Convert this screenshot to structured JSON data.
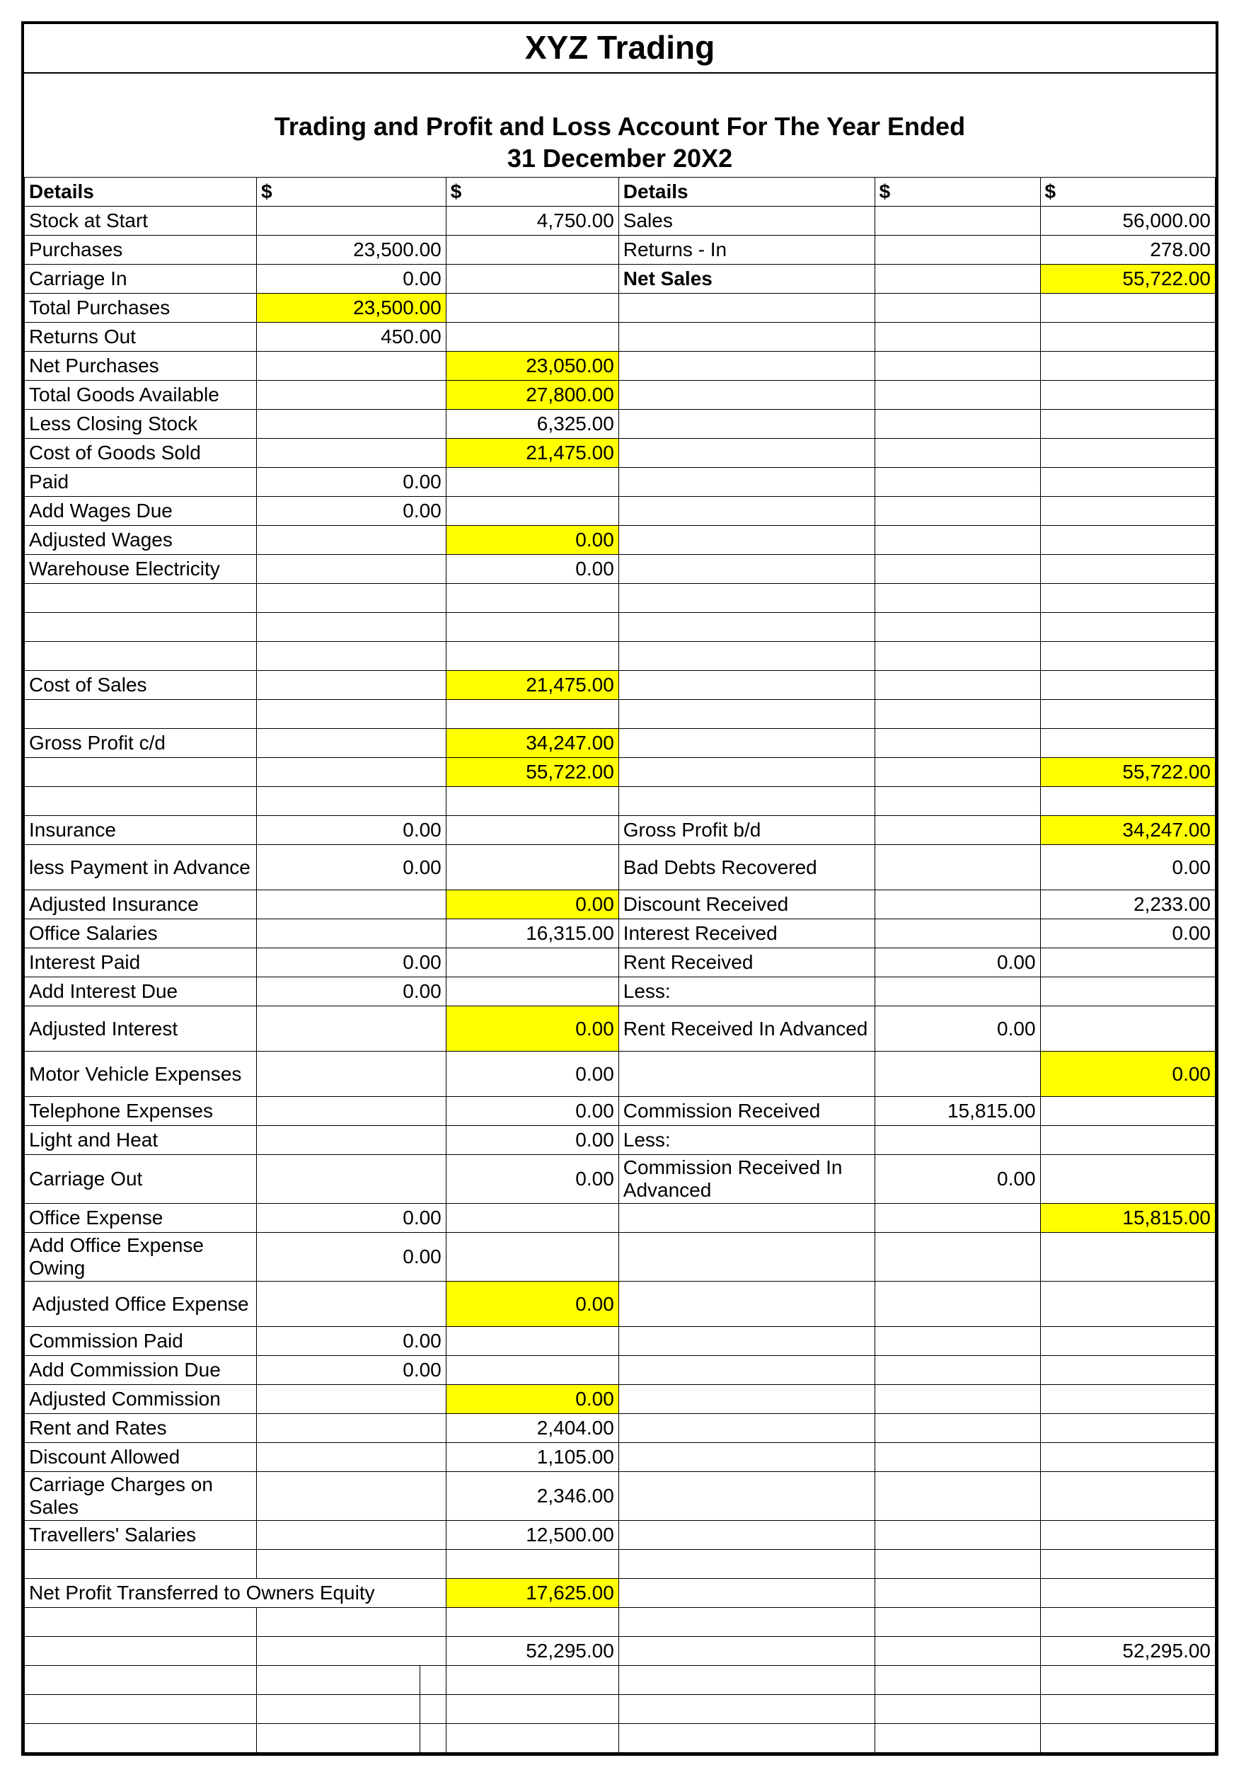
{
  "title": "XYZ Trading",
  "subtitle1": "Trading and Profit and Loss Account For The Year Ended",
  "subtitle2": "31 December 20X2",
  "headers": {
    "details": "Details",
    "dollar": "$"
  },
  "colors": {
    "highlight": "#ffff00",
    "border": "#000000",
    "bg": "#ffffff"
  },
  "font": {
    "title_size": 46,
    "subtitle_size": 36,
    "cell_size": 28
  },
  "rows": [
    {
      "L_lbl": "Stock at Start",
      "L_c1": "",
      "L_c2": "4,750.00",
      "R_lbl": "Sales",
      "R_c1": "",
      "R_c2": "56,000.00"
    },
    {
      "L_lbl": "Purchases",
      "L_c1": "23,500.00",
      "L_c2": "",
      "R_lbl": "Returns - In",
      "R_c1": "",
      "R_c2": "278.00"
    },
    {
      "L_lbl": "Carriage In",
      "L_c1": "0.00",
      "L_c2": "",
      "R_lbl": "Net Sales",
      "R_bold": true,
      "R_center": true,
      "R_c1": "",
      "R_c2": "55,722.00",
      "R_c2_hl": true
    },
    {
      "L_lbl": "Total Purchases",
      "L_indent": 1,
      "L_c1": "23,500.00",
      "L_c1_hl": true,
      "L_c2": "",
      "R_lbl": "",
      "R_c1": "",
      "R_c2": ""
    },
    {
      "L_lbl": "Returns Out",
      "L_c1": "450.00",
      "L_c2": "",
      "R_lbl": "",
      "R_c1": "",
      "R_c2": ""
    },
    {
      "L_lbl": "Net Purchases",
      "L_indent": 1,
      "L_c1": "",
      "L_c2": "23,050.00",
      "L_c2_hl": true,
      "R_lbl": "",
      "R_c1": "",
      "R_c2": ""
    },
    {
      "L_lbl": "Total Goods Available",
      "L_indent": 0,
      "L_c1": "",
      "L_c2": "27,800.00",
      "L_c2_hl": true,
      "R_lbl": "",
      "R_c1": "",
      "R_c2": ""
    },
    {
      "L_lbl": "Less Closing Stock",
      "L_c1": "",
      "L_c2": "6,325.00",
      "R_lbl": "",
      "R_c1": "",
      "R_c2": ""
    },
    {
      "L_lbl": "Cost of Goods Sold",
      "L_indent": 1,
      "L_c1": "",
      "L_c2": "21,475.00",
      "L_c2_hl": true,
      "R_lbl": "",
      "R_c1": "",
      "R_c2": ""
    },
    {
      "L_lbl": "Paid",
      "L_c1": "0.00",
      "L_c2": "",
      "R_lbl": "",
      "R_c1": "",
      "R_c2": ""
    },
    {
      "L_lbl": "Add Wages Due",
      "L_c1": "0.00",
      "L_c2": "",
      "R_lbl": "",
      "R_c1": "",
      "R_c2": ""
    },
    {
      "L_lbl": "Adjusted Wages",
      "L_indent": 1,
      "L_c1": "",
      "L_c2": "0.00",
      "L_c2_hl": true,
      "R_lbl": "",
      "R_c1": "",
      "R_c2": ""
    },
    {
      "L_lbl": "Warehouse Electricity",
      "L_c1": "",
      "L_c2": "0.00",
      "R_lbl": "",
      "R_c1": "",
      "R_c2": ""
    },
    {
      "blank": true
    },
    {
      "blank": true
    },
    {
      "blank": true
    },
    {
      "L_lbl": "Cost of Sales",
      "L_indent": 1,
      "L_c1": "",
      "L_c2": "21,475.00",
      "L_c2_hl": true,
      "R_lbl": "",
      "R_c1": "",
      "R_c2": ""
    },
    {
      "blank": true
    },
    {
      "L_lbl": "Gross Profit c/d",
      "L_c1": "",
      "L_c2": "34,247.00",
      "L_c2_hl": true,
      "R_lbl": "",
      "R_c1": "",
      "R_c2": ""
    },
    {
      "L_lbl": "",
      "L_c1": "",
      "L_c2": "55,722.00",
      "L_c2_hl": true,
      "R_lbl": "",
      "R_c1": "",
      "R_c2": "55,722.00",
      "R_c2_hl": true
    },
    {
      "blank_short": true
    },
    {
      "L_lbl": "Insurance",
      "L_c1": "0.00",
      "L_c2": "",
      "R_lbl": "Gross Profit b/d",
      "R_c1": "",
      "R_c2": "34,247.00",
      "R_c2_hl": true,
      "short": true
    },
    {
      "L_lbl": "less Payment in Advance",
      "L_c1": "0.00",
      "L_c2": "",
      "R_lbl": "Bad Debts Recovered",
      "R_c1": "",
      "R_c2": "0.00",
      "short": true,
      "tall": true
    },
    {
      "L_lbl": "Adjusted Insurance",
      "L_indent": 1,
      "L_c1": "",
      "L_c2": "0.00",
      "L_c2_hl": true,
      "R_lbl": "Discount Received",
      "R_c1": "",
      "R_c2": "2,233.00",
      "short": true
    },
    {
      "L_lbl": "Office Salaries",
      "L_c1": "",
      "L_c2": "16,315.00",
      "R_lbl": "Interest Received",
      "R_c1": "",
      "R_c2": "0.00",
      "short": true
    },
    {
      "L_lbl": "Interest Paid",
      "L_c1": "0.00",
      "L_c2": "",
      "R_lbl": "Rent Received",
      "R_indent": 1,
      "R_c1": "0.00",
      "R_c2": "",
      "short": true
    },
    {
      "L_lbl": "Add Interest Due",
      "L_c1": "0.00",
      "L_c2": "",
      "R_lbl": "Less:",
      "R_indent": 1,
      "R_c1": "",
      "R_c2": "",
      "short": true
    },
    {
      "L_lbl": "Adjusted Interest",
      "L_indent": 1,
      "L_c1": "",
      "L_c2": "0.00",
      "L_c2_hl": true,
      "R_lbl": "Rent Received In Advanced",
      "R_indent": 0,
      "R_c1": "0.00",
      "R_c2": "",
      "short": true,
      "tall": true
    },
    {
      "L_lbl": "Motor Vehicle Expenses",
      "L_c1": "",
      "L_c2": "0.00",
      "R_lbl": "",
      "R_c1": "",
      "R_c2": "0.00",
      "R_c2_hl": true,
      "short": true,
      "tall": true
    },
    {
      "L_lbl": "Telephone Expenses",
      "L_c1": "",
      "L_c2": "0.00",
      "R_lbl": "Commission Received",
      "R_c1": "15,815.00",
      "R_c2": "",
      "short": true
    },
    {
      "L_lbl": "Light and Heat",
      "L_c1": "",
      "L_c2": "0.00",
      "R_lbl": "Less:",
      "R_c1": "",
      "R_c2": "",
      "short": true
    },
    {
      "L_lbl": "Carriage Out",
      "L_c1": "",
      "L_c2": "0.00",
      "R_lbl": "Commission Received In Advanced",
      "R_center": true,
      "R_c1": "0.00",
      "R_c2": "",
      "short": true,
      "tall": true
    },
    {
      "L_lbl": "Office Expense",
      "L_c1": "0.00",
      "L_c2": "",
      "R_lbl": "",
      "R_c1": "",
      "R_c2": "15,815.00",
      "R_c2_hl": true,
      "short": true
    },
    {
      "L_lbl": "Add Office Expense Owing",
      "L_c1": "0.00",
      "L_c2": "",
      "R_lbl": "",
      "R_c1": "",
      "R_c2": "",
      "short": true,
      "tall": true
    },
    {
      "L_lbl": "Adjusted Office Expense",
      "L_indent": 2,
      "L_indentC": true,
      "L_c1": "",
      "L_c2": "0.00",
      "L_c2_hl": true,
      "R_lbl": "",
      "R_c1": "",
      "R_c2": "",
      "short": true,
      "tall": true
    },
    {
      "L_lbl": "Commission Paid",
      "L_c1": "0.00",
      "L_c2": "",
      "R_lbl": "",
      "R_c1": "",
      "R_c2": "",
      "short": true
    },
    {
      "L_lbl": "Add Commission Due",
      "L_c1": "0.00",
      "L_c2": "",
      "R_lbl": "",
      "R_c1": "",
      "R_c2": "",
      "short": true
    },
    {
      "L_lbl": "Adjusted Commission",
      "L_indent": 0,
      "L_c1": "",
      "L_c2": "0.00",
      "L_c2_hl": true,
      "R_lbl": "",
      "R_c1": "",
      "R_c2": "",
      "short": true
    },
    {
      "L_lbl": "Rent and Rates",
      "L_c1": "",
      "L_c2": "2,404.00",
      "R_lbl": "",
      "R_c1": "",
      "R_c2": "",
      "short": true
    },
    {
      "L_lbl": "Discount Allowed",
      "L_c1": "",
      "L_c2": "1,105.00",
      "R_lbl": "",
      "R_c1": "",
      "R_c2": "",
      "short": true
    },
    {
      "L_lbl": "Carriage Charges on Sales",
      "L_c1": "",
      "L_c2": "2,346.00",
      "R_lbl": "",
      "R_c1": "",
      "R_c2": "",
      "short": true,
      "tall": true
    },
    {
      "L_lbl": "Travellers' Salaries",
      "L_c1": "",
      "L_c2": "12,500.00",
      "R_lbl": "",
      "R_c1": "",
      "R_c2": "",
      "short": true
    },
    {
      "blank_short": true
    },
    {
      "L_lbl": "Net Profit Transferred to Owners Equity",
      "L_span": true,
      "L_c2": "17,625.00",
      "L_c2_hl": true,
      "R_lbl": "",
      "R_c1": "",
      "R_c2": "",
      "short": true
    },
    {
      "blank_short": true
    },
    {
      "L_lbl": "",
      "L_c1": "",
      "L_c2": "52,295.00",
      "R_lbl": "",
      "R_c1": "",
      "R_c2": "52,295.00",
      "short": true
    },
    {
      "blank_split": true
    },
    {
      "blank_split": true
    },
    {
      "blank_split": true
    }
  ]
}
